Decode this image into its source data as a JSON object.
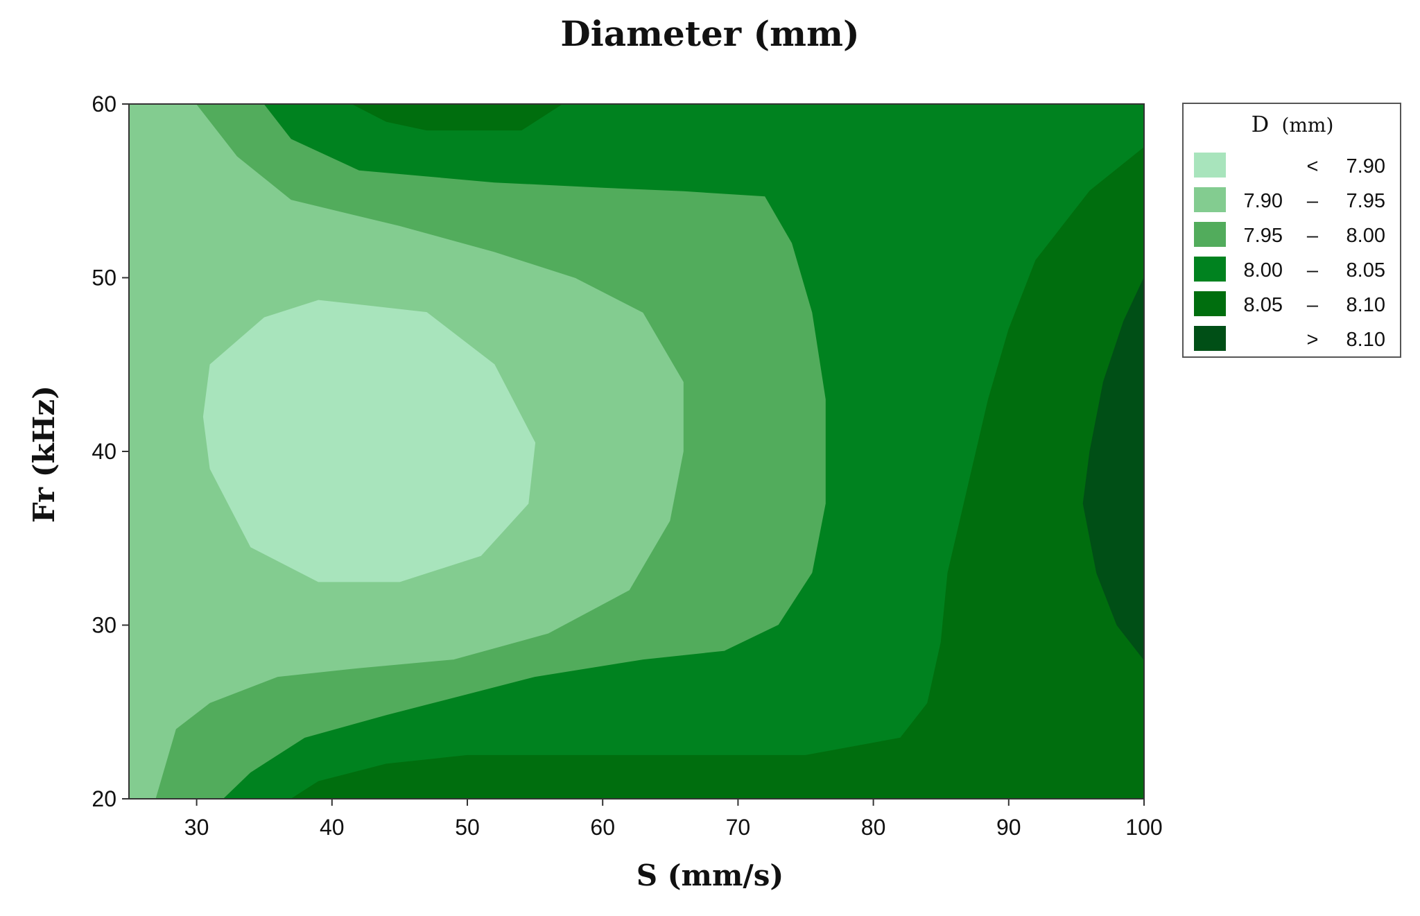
{
  "chart_data": {
    "type": "contour",
    "title": "Diameter (mm)",
    "xlabel": "S (mm/s)",
    "ylabel": "Fr (kHz)",
    "xlim": [
      25,
      100
    ],
    "ylim": [
      20,
      60
    ],
    "x_ticks": [
      "30",
      "40",
      "50",
      "60",
      "70",
      "80",
      "90",
      "100"
    ],
    "y_ticks": [
      "20",
      "30",
      "40",
      "50",
      "60"
    ],
    "grid": false,
    "legend_position": "right",
    "legend": {
      "title": "D",
      "title_unit": "(mm)",
      "entries": [
        {
          "lo": "",
          "sep": "<",
          "hi": "7.90",
          "color": "#a8e4bc"
        },
        {
          "lo": "7.90",
          "sep": "–",
          "hi": "7.95",
          "color": "#83cc90"
        },
        {
          "lo": "7.95",
          "sep": "–",
          "hi": "8.00",
          "color": "#52ac5c"
        },
        {
          "lo": "8.00",
          "sep": "–",
          "hi": "8.05",
          "color": "#00821f"
        },
        {
          "lo": "8.05",
          "sep": "–",
          "hi": "8.10",
          "color": "#006e0e"
        },
        {
          "lo": "",
          "sep": ">",
          "hi": "8.10",
          "color": "#004f16"
        }
      ]
    },
    "regions": [
      {
        "level": "< 7.90",
        "color": "#a8e4bc",
        "outline": [
          [
            31,
            45
          ],
          [
            35,
            47.7
          ],
          [
            39,
            48.7
          ],
          [
            47,
            48
          ],
          [
            52,
            45
          ],
          [
            55,
            40.5
          ],
          [
            54.5,
            37
          ],
          [
            51,
            34
          ],
          [
            45,
            32.5
          ],
          [
            39,
            32.5
          ],
          [
            34,
            34.5
          ],
          [
            31,
            39
          ],
          [
            30.5,
            42
          ]
        ]
      },
      {
        "level": "7.90 – 7.95",
        "color": "#83cc90",
        "outline": [
          [
            26,
            60
          ],
          [
            30,
            60
          ],
          [
            33,
            57
          ],
          [
            37,
            54.5
          ],
          [
            45,
            53
          ],
          [
            52,
            51.5
          ],
          [
            58,
            50
          ],
          [
            63,
            48
          ],
          [
            66,
            44
          ],
          [
            66,
            40
          ],
          [
            65,
            36
          ],
          [
            62,
            32
          ],
          [
            56,
            29.5
          ],
          [
            49,
            28
          ],
          [
            42,
            27.5
          ],
          [
            36,
            27
          ],
          [
            31,
            25.5
          ],
          [
            28.5,
            24
          ],
          [
            27,
            20
          ],
          [
            26,
            20
          ]
        ]
      },
      {
        "level": "7.95 – 8.00",
        "color": "#52ac5c",
        "outline": [
          [
            30,
            60
          ],
          [
            35,
            60
          ],
          [
            37,
            58
          ],
          [
            42,
            56.2
          ],
          [
            52,
            55.5
          ],
          [
            60,
            55.2
          ],
          [
            66,
            55
          ],
          [
            72,
            54.7
          ],
          [
            74,
            52
          ],
          [
            75.5,
            48
          ],
          [
            76.5,
            43
          ],
          [
            76.5,
            37
          ],
          [
            75.5,
            33
          ],
          [
            73,
            30
          ],
          [
            69,
            28.5
          ],
          [
            63,
            28
          ],
          [
            55,
            27
          ],
          [
            50,
            26
          ],
          [
            44,
            24.8
          ],
          [
            38,
            23.5
          ],
          [
            34,
            21.5
          ],
          [
            32,
            20
          ],
          [
            27,
            20
          ],
          [
            28.5,
            24
          ],
          [
            31,
            25.5
          ],
          [
            36,
            27
          ],
          [
            42,
            27.5
          ],
          [
            49,
            28
          ],
          [
            56,
            29.5
          ],
          [
            62,
            32
          ],
          [
            65,
            36
          ],
          [
            66,
            40
          ],
          [
            66,
            44
          ],
          [
            63,
            48
          ],
          [
            58,
            50
          ],
          [
            52,
            51.5
          ],
          [
            45,
            53
          ],
          [
            37,
            54.5
          ],
          [
            33,
            57
          ]
        ]
      },
      {
        "level": "8.00 – 8.05",
        "color": "#00821f",
        "outline": [
          [
            35,
            60
          ],
          [
            100,
            60
          ],
          [
            100,
            57.5
          ],
          [
            96,
            55
          ],
          [
            92,
            51
          ],
          [
            90,
            47
          ],
          [
            88.5,
            43
          ],
          [
            87,
            38
          ],
          [
            85.5,
            33
          ],
          [
            85,
            29
          ],
          [
            84,
            25.5
          ],
          [
            82,
            23.5
          ],
          [
            75,
            22.5
          ],
          [
            60,
            22.5
          ],
          [
            50,
            22.5
          ],
          [
            44,
            22
          ],
          [
            39,
            21
          ],
          [
            37,
            20
          ],
          [
            32,
            20
          ],
          [
            34,
            21.5
          ],
          [
            38,
            23.5
          ],
          [
            44,
            24.8
          ],
          [
            50,
            26
          ],
          [
            55,
            27
          ],
          [
            63,
            28
          ],
          [
            69,
            28.5
          ],
          [
            73,
            30
          ],
          [
            75.5,
            33
          ],
          [
            76.5,
            37
          ],
          [
            76.5,
            43
          ],
          [
            75.5,
            48
          ],
          [
            74,
            52
          ],
          [
            72,
            54.7
          ],
          [
            66,
            55
          ],
          [
            60,
            55.2
          ],
          [
            52,
            55.5
          ],
          [
            42,
            56.2
          ],
          [
            37,
            58
          ]
        ]
      },
      {
        "level": "8.05 – 8.10",
        "color": "#006e0e",
        "outline": [
          [
            100,
            57.5
          ],
          [
            100,
            20
          ],
          [
            37,
            20
          ],
          [
            39,
            21
          ],
          [
            44,
            22
          ],
          [
            50,
            22.5
          ],
          [
            60,
            22.5
          ],
          [
            75,
            22.5
          ],
          [
            82,
            23.5
          ],
          [
            84,
            25.5
          ],
          [
            85,
            29
          ],
          [
            85.5,
            33
          ],
          [
            87,
            38
          ],
          [
            88.5,
            43
          ],
          [
            90,
            47
          ],
          [
            92,
            51
          ],
          [
            96,
            55
          ]
        ]
      },
      {
        "level": "8.05 – 8.10",
        "color": "#006e0e",
        "outline": [
          [
            41.5,
            60
          ],
          [
            57,
            60
          ],
          [
            54,
            58.5
          ],
          [
            47,
            58.5
          ],
          [
            44,
            59
          ]
        ]
      },
      {
        "level": "> 8.10",
        "color": "#004f16",
        "outline": [
          [
            100,
            50
          ],
          [
            98.5,
            47.5
          ],
          [
            97,
            44
          ],
          [
            96,
            40
          ],
          [
            95.5,
            37
          ],
          [
            96.5,
            33
          ],
          [
            98,
            30
          ],
          [
            100,
            28
          ]
        ]
      }
    ]
  }
}
